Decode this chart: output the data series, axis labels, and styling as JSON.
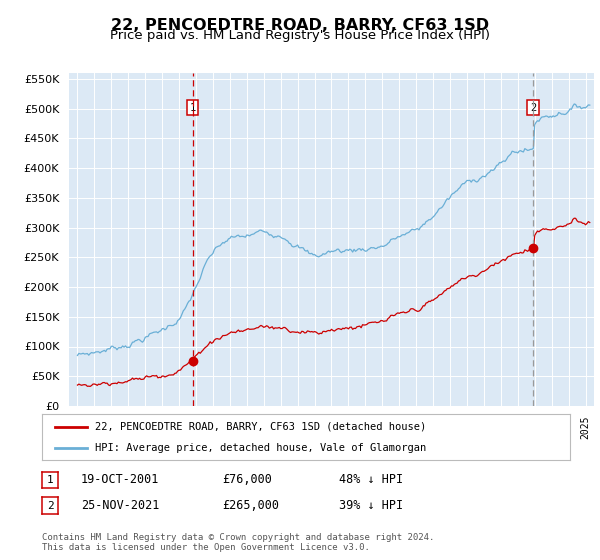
{
  "title": "22, PENCOEDTRE ROAD, BARRY, CF63 1SD",
  "subtitle": "Price paid vs. HM Land Registry's House Price Index (HPI)",
  "legend_line1": "22, PENCOEDTRE ROAD, BARRY, CF63 1SD (detached house)",
  "legend_line2": "HPI: Average price, detached house, Vale of Glamorgan",
  "footer1": "Contains HM Land Registry data © Crown copyright and database right 2024.",
  "footer2": "This data is licensed under the Open Government Licence v3.0.",
  "annotation1": {
    "label": "1",
    "date": "19-OCT-2001",
    "price": 76000,
    "note": "48% ↓ HPI"
  },
  "annotation2": {
    "label": "2",
    "date": "25-NOV-2021",
    "price": 265000,
    "note": "39% ↓ HPI"
  },
  "vline1_x": 2001.8,
  "vline2_x": 2021.9,
  "sale1_price": 76000,
  "sale2_price": 265000,
  "ylim": [
    0,
    560000
  ],
  "xlim": [
    1994.5,
    2025.5
  ],
  "bg_color": "#dce9f5",
  "hpi_color": "#6aafd6",
  "price_color": "#cc0000",
  "vline1_color": "#cc0000",
  "vline2_color": "#999999",
  "grid_color": "#ffffff",
  "title_fontsize": 12,
  "subtitle_fontsize": 10
}
